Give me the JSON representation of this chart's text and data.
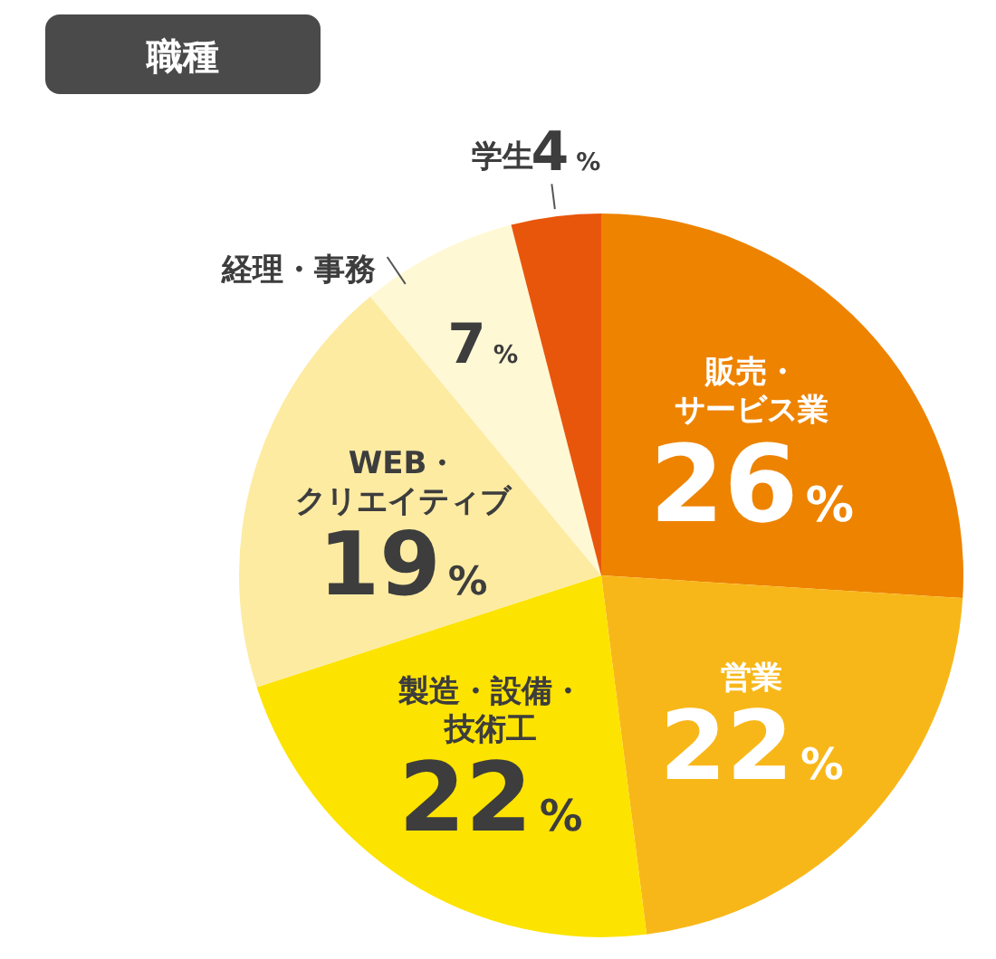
{
  "chart_data": {
    "type": "pie",
    "title": "職種",
    "categories": [
      "販売・サービス業",
      "営業",
      "製造・設備・技術工",
      "WEB・クリエイティブ",
      "経理・事務",
      "学生"
    ],
    "values": [
      26,
      22,
      22,
      19,
      7,
      4
    ],
    "colors": [
      "#ee8300",
      "#f8b719",
      "#fde300",
      "#fdeba2",
      "#fff8d4",
      "#e8560c"
    ],
    "value_labels": [
      "26%",
      "22%",
      "22%",
      "19%",
      "7%",
      "4%"
    ]
  }
}
